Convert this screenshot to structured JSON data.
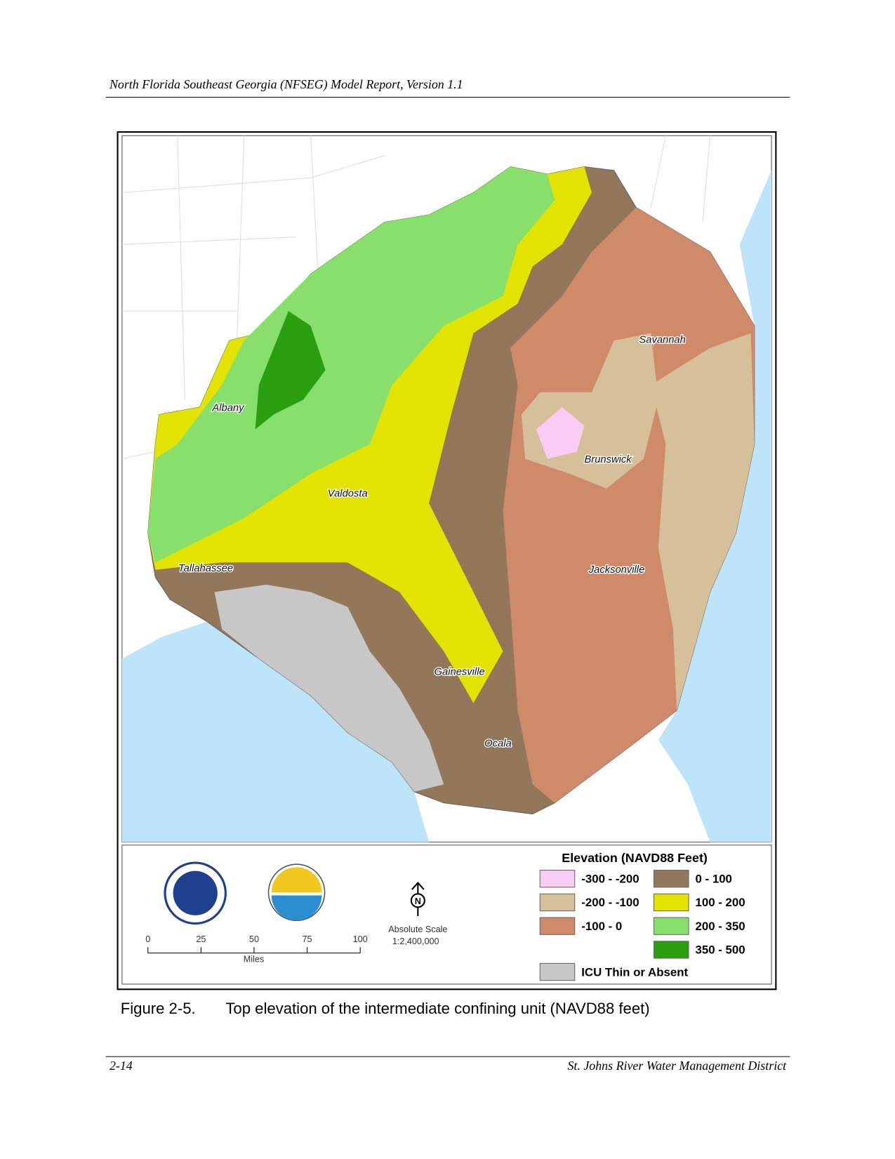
{
  "header": {
    "title": "North Florida Southeast Georgia (NFSEG) Model Report, Version 1.1"
  },
  "figure": {
    "cities": [
      "Savannah",
      "Albany",
      "Brunswick",
      "Valdosta",
      "Tallahassee",
      "Jacksonville",
      "Gainesville",
      "Ocala"
    ],
    "legend": {
      "title": "Elevation (NAVD88 Feet)",
      "items": [
        {
          "label": "-300 - -200",
          "color": "#f9ccf4"
        },
        {
          "label": "-200 - -100",
          "color": "#d6c09a"
        },
        {
          "label": "-100 - 0",
          "color": "#cf8a69"
        },
        {
          "label": "0 - 100",
          "color": "#93775a"
        },
        {
          "label": "100 - 200",
          "color": "#e3e300"
        },
        {
          "label": "200 - 350",
          "color": "#87e06b"
        },
        {
          "label": "350 - 500",
          "color": "#2aa010"
        },
        {
          "label": "ICU Thin or Absent",
          "color": "#c7c7c7"
        }
      ]
    },
    "scale_bar": {
      "ticks": [
        0,
        25,
        50,
        75,
        100
      ],
      "unit": "Miles"
    },
    "scale_text": [
      "Absolute Scale",
      "1:2,400,000"
    ],
    "north": "N",
    "caption": {
      "number": "Figure 2-5.",
      "text": "Top elevation of the intermediate confining unit (NAVD88 feet)"
    }
  },
  "footer": {
    "page": "2-14",
    "publisher": "St. Johns River Water Management District"
  }
}
